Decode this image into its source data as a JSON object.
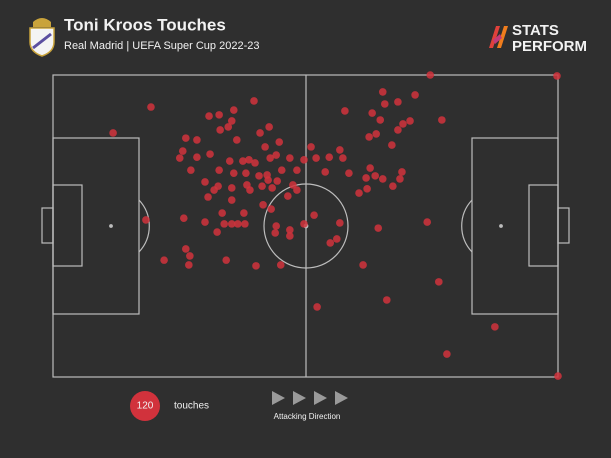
{
  "chart_data": {
    "type": "scatter",
    "title": "Toni Kroos Touches",
    "subtitle": "Real Madrid | UEFA Super Cup 2022-23",
    "brand": [
      "STATS",
      "PERFORM"
    ],
    "legend": {
      "count": 120,
      "label": "touches"
    },
    "direction_label": "Attacking Direction",
    "color": "#d1323c",
    "xlim": [
      0,
      100
    ],
    "ylim": [
      0,
      100
    ],
    "x": [
      74.7,
      99.8,
      19.4,
      11.9,
      65.3,
      71.7,
      68.3,
      65.7,
      57.8,
      63.2,
      64.8,
      70.7,
      77.0,
      69.3,
      68.3,
      64.0,
      62.6,
      67.1,
      39.8,
      35.8,
      30.9,
      32.9,
      35.4,
      34.7,
      33.1,
      42.8,
      41.0,
      26.3,
      28.5,
      25.7,
      25.1,
      36.4,
      44.8,
      42.0,
      51.1,
      56.8,
      28.5,
      31.1,
      35.0,
      37.6,
      38.8,
      40.0,
      43.0,
      44.2,
      46.9,
      49.7,
      52.1,
      54.7,
      57.4,
      27.3,
      32.9,
      35.8,
      38.2,
      40.8,
      42.4,
      42.6,
      45.3,
      48.3,
      53.9,
      58.6,
      62.8,
      63.8,
      62.0,
      65.3,
      68.7,
      69.1,
      38.4,
      41.4,
      44.4,
      47.5,
      48.3,
      46.5,
      31.9,
      32.7,
      35.4,
      39.0,
      43.4,
      35.4,
      30.7,
      41.6,
      43.2,
      60.6,
      62.2,
      67.3,
      33.5,
      37.8,
      25.9,
      18.4,
      30.1,
      33.9,
      35.4,
      36.6,
      38.0,
      44.2,
      49.7,
      51.7,
      56.8,
      64.4,
      74.1,
      32.5,
      44.0,
      46.9,
      46.9,
      54.9,
      56.2,
      26.3,
      22.0,
      26.9,
      34.3,
      40.2,
      45.1,
      61.4,
      76.4,
      66.1,
      52.3,
      87.5,
      78.0,
      100,
      27.1,
      30.1
    ],
    "y": [
      100,
      99.7,
      89.4,
      80.8,
      94.4,
      93.4,
      91.1,
      90.4,
      88.1,
      87.4,
      85.1,
      84.8,
      85.1,
      83.8,
      81.8,
      80.5,
      79.5,
      76.8,
      91.4,
      88.4,
      86.4,
      86.8,
      84.8,
      82.8,
      81.8,
      82.8,
      80.8,
      79.1,
      78.5,
      74.8,
      72.5,
      78.5,
      77.8,
      76.2,
      76.2,
      75.2,
      72.8,
      73.8,
      71.5,
      71.5,
      71.9,
      70.9,
      72.5,
      73.5,
      72.5,
      71.9,
      72.5,
      72.8,
      72.5,
      68.5,
      68.5,
      67.5,
      67.5,
      66.6,
      66.9,
      65.2,
      68.5,
      68.5,
      67.9,
      67.5,
      69.2,
      66.6,
      65.9,
      65.6,
      65.6,
      67.9,
      63.6,
      63.2,
      64.9,
      63.6,
      61.9,
      59.9,
      61.9,
      63.2,
      62.6,
      61.9,
      62.6,
      58.6,
      59.6,
      57.0,
      55.6,
      60.9,
      62.3,
      63.2,
      54.3,
      54.3,
      52.6,
      52.0,
      51.3,
      50.7,
      50.7,
      50.7,
      50.7,
      50.0,
      50.7,
      53.6,
      51.0,
      49.3,
      51.3,
      48.0,
      47.7,
      48.7,
      46.7,
      44.4,
      45.7,
      42.4,
      38.7,
      37.1,
      38.7,
      36.8,
      37.1,
      37.1,
      31.5,
      25.5,
      23.2,
      16.6,
      7.6,
      0.3,
      40.1,
      64.6
    ]
  }
}
